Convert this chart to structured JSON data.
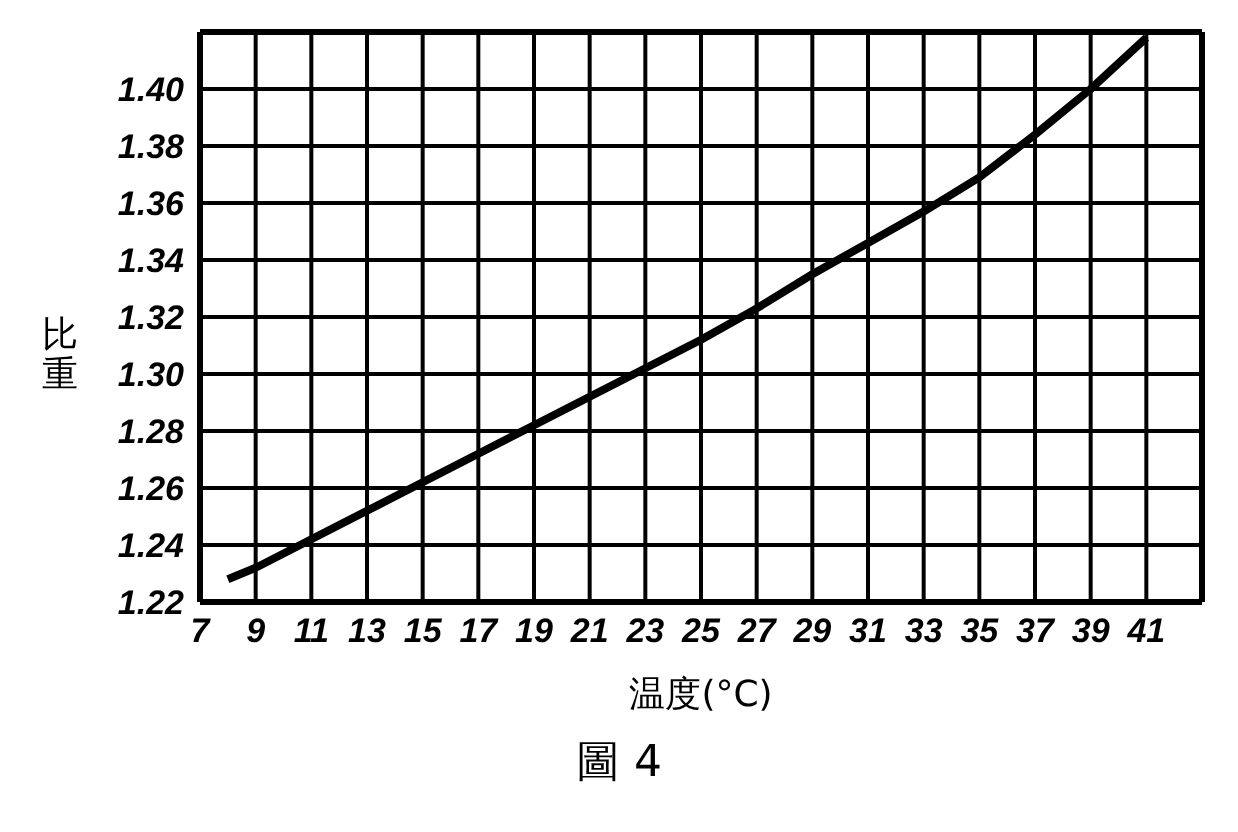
{
  "chart_data": {
    "type": "line",
    "title": "圖 4",
    "xlabel": "温度(°C)",
    "ylabel": "比重",
    "x": [
      8,
      9,
      11,
      13,
      15,
      17,
      19,
      21,
      23,
      25,
      27,
      29,
      31,
      33,
      35,
      37,
      39,
      41
    ],
    "series": [
      {
        "color": "#000000",
        "values": [
          1.228,
          1.232,
          1.242,
          1.252,
          1.262,
          1.272,
          1.282,
          1.292,
          1.302,
          1.312,
          1.323,
          1.335,
          1.346,
          1.357,
          1.369,
          1.384,
          1.4,
          1.418
        ]
      }
    ],
    "xlim": [
      7,
      43
    ],
    "xticks": [
      7,
      9,
      11,
      13,
      15,
      17,
      19,
      21,
      23,
      25,
      27,
      29,
      31,
      33,
      35,
      37,
      39,
      41
    ],
    "ylim": [
      1.22,
      1.42
    ],
    "yticks": [
      1.22,
      1.24,
      1.26,
      1.28,
      {
        "value": 1.3,
        "label": "1.30"
      },
      1.32,
      1.34,
      1.36,
      1.38,
      {
        "value": 1.4,
        "label": "1.40"
      }
    ],
    "grid": true,
    "marker": "none",
    "line_style": "solid"
  }
}
